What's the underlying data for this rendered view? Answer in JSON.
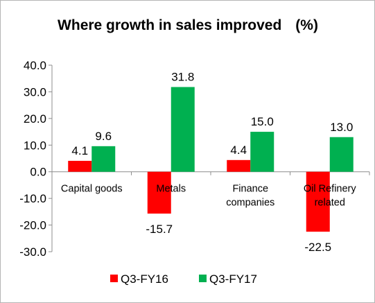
{
  "chart_data": {
    "type": "bar",
    "title": "Where growth in sales improved",
    "unit_label": "(%)",
    "categories": [
      "Capital goods",
      "Metals",
      "Finance companies",
      "Oil Refinery related"
    ],
    "category_lines": [
      [
        "Capital goods"
      ],
      [
        "Metals"
      ],
      [
        "Finance",
        "companies"
      ],
      [
        "Oil Refinery",
        "related"
      ]
    ],
    "series": [
      {
        "name": "Q3-FY16",
        "color": "#ff0000",
        "values": [
          4.1,
          -15.7,
          4.4,
          -22.5
        ],
        "labels": [
          "4.1",
          "-15.7",
          "4.4",
          "-22.5"
        ]
      },
      {
        "name": "Q3-FY17",
        "color": "#00b050",
        "values": [
          9.6,
          31.8,
          15.0,
          13.0
        ],
        "labels": [
          "9.6",
          "31.8",
          "15.0",
          "13.0"
        ]
      }
    ],
    "ylim": [
      -30,
      40
    ],
    "yticks": [
      40,
      30,
      20,
      10,
      0,
      -10,
      -20,
      -30
    ],
    "ytick_labels": [
      "40.0",
      "30.0",
      "20.0",
      "10.0",
      "0.0",
      "-10.0",
      "-20.0",
      "-30.0"
    ],
    "grid": false,
    "legend_position": "bottom"
  }
}
